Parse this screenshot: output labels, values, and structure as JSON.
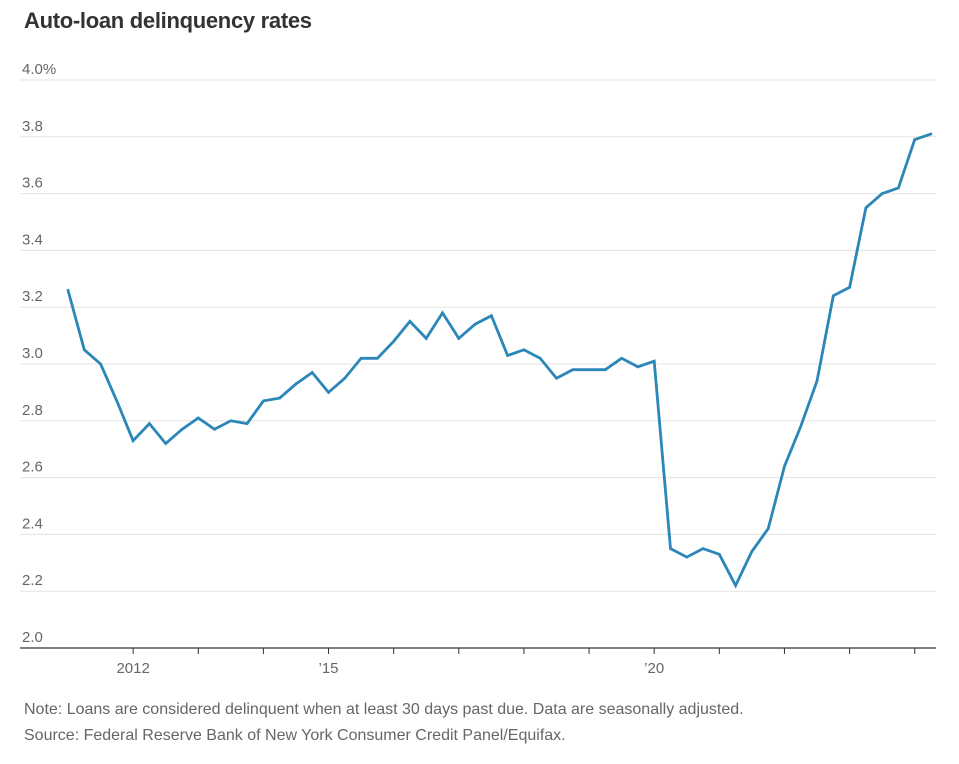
{
  "chart_data": {
    "type": "line",
    "title": "Auto-loan delinquency rates",
    "ylim": [
      2.0,
      4.0
    ],
    "yticks": [
      2.0,
      2.2,
      2.4,
      2.6,
      2.8,
      3.0,
      3.2,
      3.4,
      3.6,
      3.8,
      4.0
    ],
    "ytick_labels": [
      "2.0",
      "2.2",
      "2.4",
      "2.6",
      "2.8",
      "3.0",
      "3.2",
      "3.4",
      "3.6",
      "3.8",
      "4.0%"
    ],
    "xlim": [
      2011,
      2024.25
    ],
    "xtick_positions": [
      2012,
      2013,
      2014,
      2015,
      2016,
      2017,
      2018,
      2019,
      2020,
      2021,
      2022,
      2023,
      2024
    ],
    "xtick_labels": [
      {
        "year": 2012,
        "label": "2012"
      },
      {
        "year": 2015,
        "label": "’15"
      },
      {
        "year": 2020,
        "label": "’20"
      }
    ],
    "grid": true,
    "color": "#2a87b8",
    "series": [
      {
        "x": [
          2011.0,
          2011.25,
          2011.5,
          2011.75,
          2012.0,
          2012.25,
          2012.5,
          2012.75,
          2013.0,
          2013.25,
          2013.5,
          2013.75,
          2014.0,
          2014.25,
          2014.5,
          2014.75,
          2015.0,
          2015.25,
          2015.5,
          2015.75,
          2016.0,
          2016.25,
          2016.5,
          2016.75,
          2017.0,
          2017.25,
          2017.5,
          2017.75,
          2018.0,
          2018.25,
          2018.5,
          2018.75,
          2019.0,
          2019.25,
          2019.5,
          2019.75,
          2020.0,
          2020.25,
          2020.5,
          2020.75,
          2021.0,
          2021.25,
          2021.5,
          2021.75,
          2022.0,
          2022.25,
          2022.5,
          2022.75,
          2023.0,
          2023.25,
          2023.5,
          2023.75,
          2024.0,
          2024.25
        ],
        "values": [
          3.26,
          3.05,
          3.0,
          2.87,
          2.73,
          2.79,
          2.72,
          2.77,
          2.81,
          2.77,
          2.8,
          2.79,
          2.87,
          2.88,
          2.93,
          2.97,
          2.9,
          2.95,
          3.02,
          3.02,
          3.08,
          3.15,
          3.09,
          3.18,
          3.09,
          3.14,
          3.17,
          3.03,
          3.05,
          3.02,
          2.95,
          2.98,
          2.98,
          2.98,
          3.02,
          2.99,
          3.01,
          2.35,
          2.32,
          2.35,
          2.33,
          2.22,
          2.34,
          2.42,
          2.64,
          2.78,
          2.94,
          3.24,
          3.27,
          3.55,
          3.6,
          3.62,
          3.79,
          3.81
        ]
      }
    ]
  },
  "footer": {
    "note": "Note: Loans are considered delinquent when at least 30 days past due. Data are seasonally adjusted.",
    "source": "Source: Federal Reserve Bank of New York Consumer Credit Panel/Equifax."
  }
}
